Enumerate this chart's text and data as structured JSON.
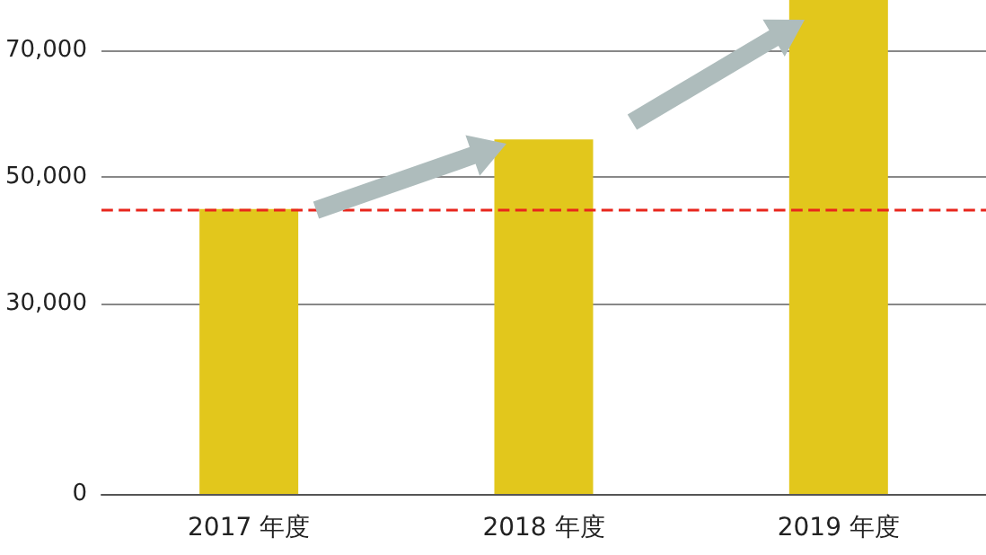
{
  "chart_data": {
    "type": "bar",
    "categories": [
      "2017 年度",
      "2018 年度",
      "2019 年度"
    ],
    "values": [
      45000,
      56000,
      78000
    ],
    "color": "#e2c71c",
    "ylim": [
      0,
      78000
    ],
    "yticks": [
      {
        "value": 0,
        "label": "0"
      },
      {
        "value": 30000,
        "label": "30,000"
      },
      {
        "value": 50000,
        "label": "50,000"
      },
      {
        "value": 70000,
        "label": "70,000"
      }
    ],
    "grid": "y",
    "ref_lines": [
      {
        "axis": "y",
        "value": 45000,
        "color": "#e8261c",
        "line_style": "dashed"
      }
    ]
  }
}
